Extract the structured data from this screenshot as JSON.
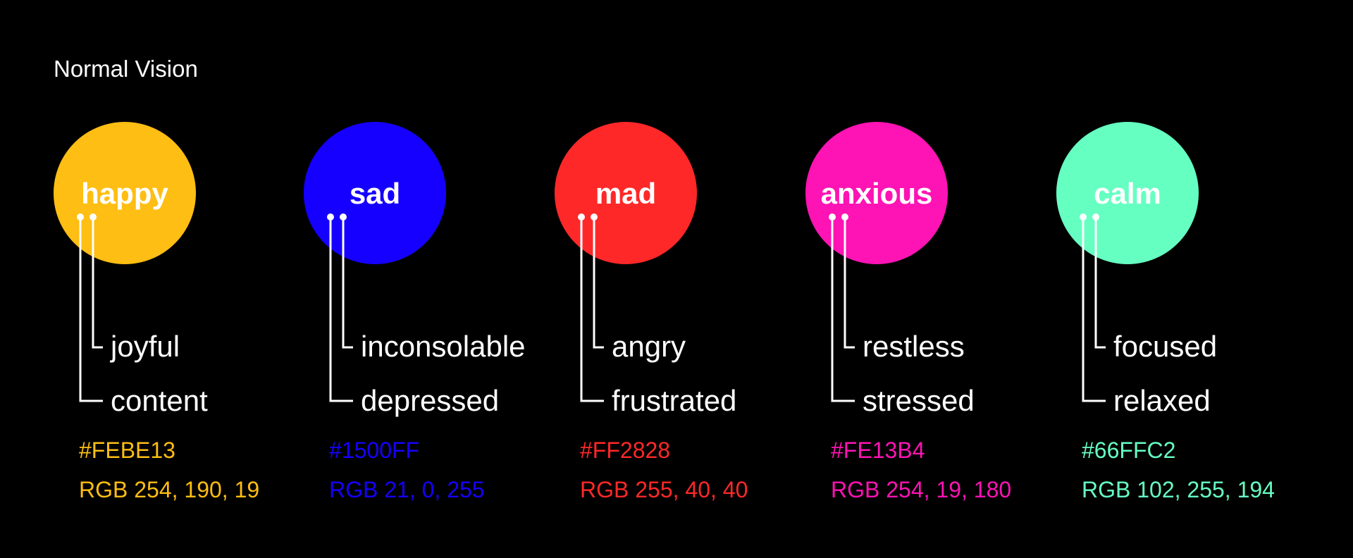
{
  "title": "Normal Vision",
  "emotions": [
    {
      "name": "happy",
      "color": "#FEBE13",
      "hex": "#FEBE13",
      "rgb": "RGB 254, 190, 19",
      "related": [
        "joyful",
        "content"
      ]
    },
    {
      "name": "sad",
      "color": "#1500FF",
      "hex": "#1500FF",
      "rgb": "RGB 21, 0, 255",
      "related": [
        "inconsolable",
        "depressed"
      ]
    },
    {
      "name": "mad",
      "color": "#FF2828",
      "hex": "#FF2828",
      "rgb": "RGB 255, 40, 40",
      "related": [
        "angry",
        "frustrated"
      ]
    },
    {
      "name": "anxious",
      "color": "#FE13B4",
      "hex": "#FE13B4",
      "rgb": "RGB 254, 19, 180",
      "related": [
        "restless",
        "stressed"
      ]
    },
    {
      "name": "calm",
      "color": "#66FFC2",
      "hex": "#66FFC2",
      "rgb": "RGB 102, 255, 194",
      "related": [
        "focused",
        "relaxed"
      ]
    }
  ]
}
